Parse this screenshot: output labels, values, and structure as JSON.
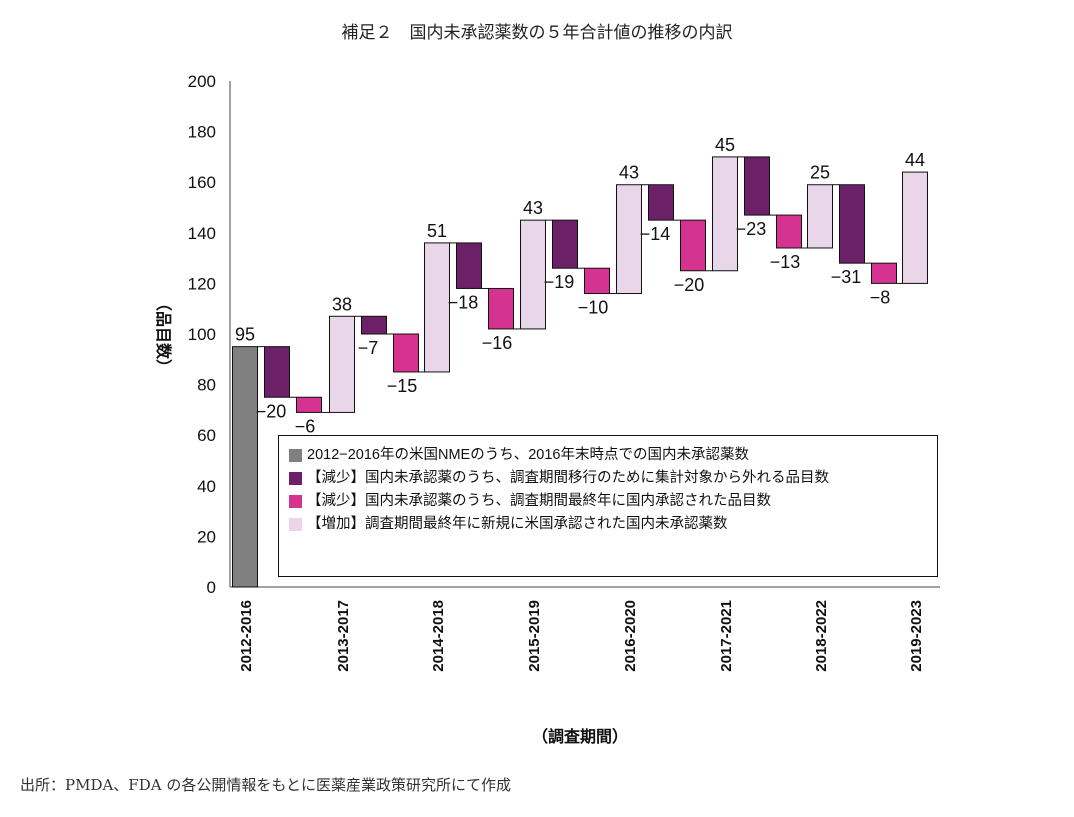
{
  "title": "補足２　国内未承認薬数の５年合計値の推移の内訳",
  "source": "出所：PMDA、FDA の各公開情報をもとに医薬産業政策研究所にて作成",
  "chart_data": {
    "type": "waterfall",
    "title": "補足２　国内未承認薬数の５年合計値の推移の内訳",
    "xlabel": "（調査期間）",
    "ylabel": "（品目数）",
    "ylim": [
      0,
      200
    ],
    "yticks": [
      0,
      20,
      40,
      60,
      80,
      100,
      120,
      140,
      160,
      180,
      200
    ],
    "categories": [
      "2012-2016",
      "2013-2017",
      "2014-2018",
      "2015-2019",
      "2016-2020",
      "2017-2021",
      "2018-2022",
      "2019-2023"
    ],
    "start": 95,
    "start_label": "95",
    "steps": [
      {
        "excluded": -20,
        "approved": -6,
        "added": 38
      },
      {
        "excluded": -7,
        "approved": -15,
        "added": 51
      },
      {
        "excluded": -18,
        "approved": -16,
        "added": 43
      },
      {
        "excluded": -19,
        "approved": -10,
        "added": 43
      },
      {
        "excluded": -14,
        "approved": -20,
        "added": 45
      },
      {
        "excluded": -23,
        "approved": -13,
        "added": 25
      },
      {
        "excluded": -31,
        "approved": -8,
        "added": 44
      }
    ],
    "totals": [
      95,
      107,
      136,
      145,
      159,
      170,
      159,
      164
    ],
    "colors": {
      "base": "#808080",
      "excluded": "#6b2068",
      "approved": "#d63390",
      "added": "#e9d6e9"
    },
    "legend": [
      {
        "key": "base",
        "label": "2012−2016年の米国NMEのうち、2016年末時点での国内未承認薬数"
      },
      {
        "key": "excluded",
        "label": "【減少】国内未承認薬のうち、調査期間移行のために集計対象から外れる品目数"
      },
      {
        "key": "approved",
        "label": "【減少】国内未承認薬のうち、調査期間最終年に国内承認された品目数"
      },
      {
        "key": "added",
        "label": "【増加】調査期間最終年に新規に米国承認された国内未承認薬数"
      }
    ],
    "legend_position": "bottom-right inside",
    "grid": false
  }
}
